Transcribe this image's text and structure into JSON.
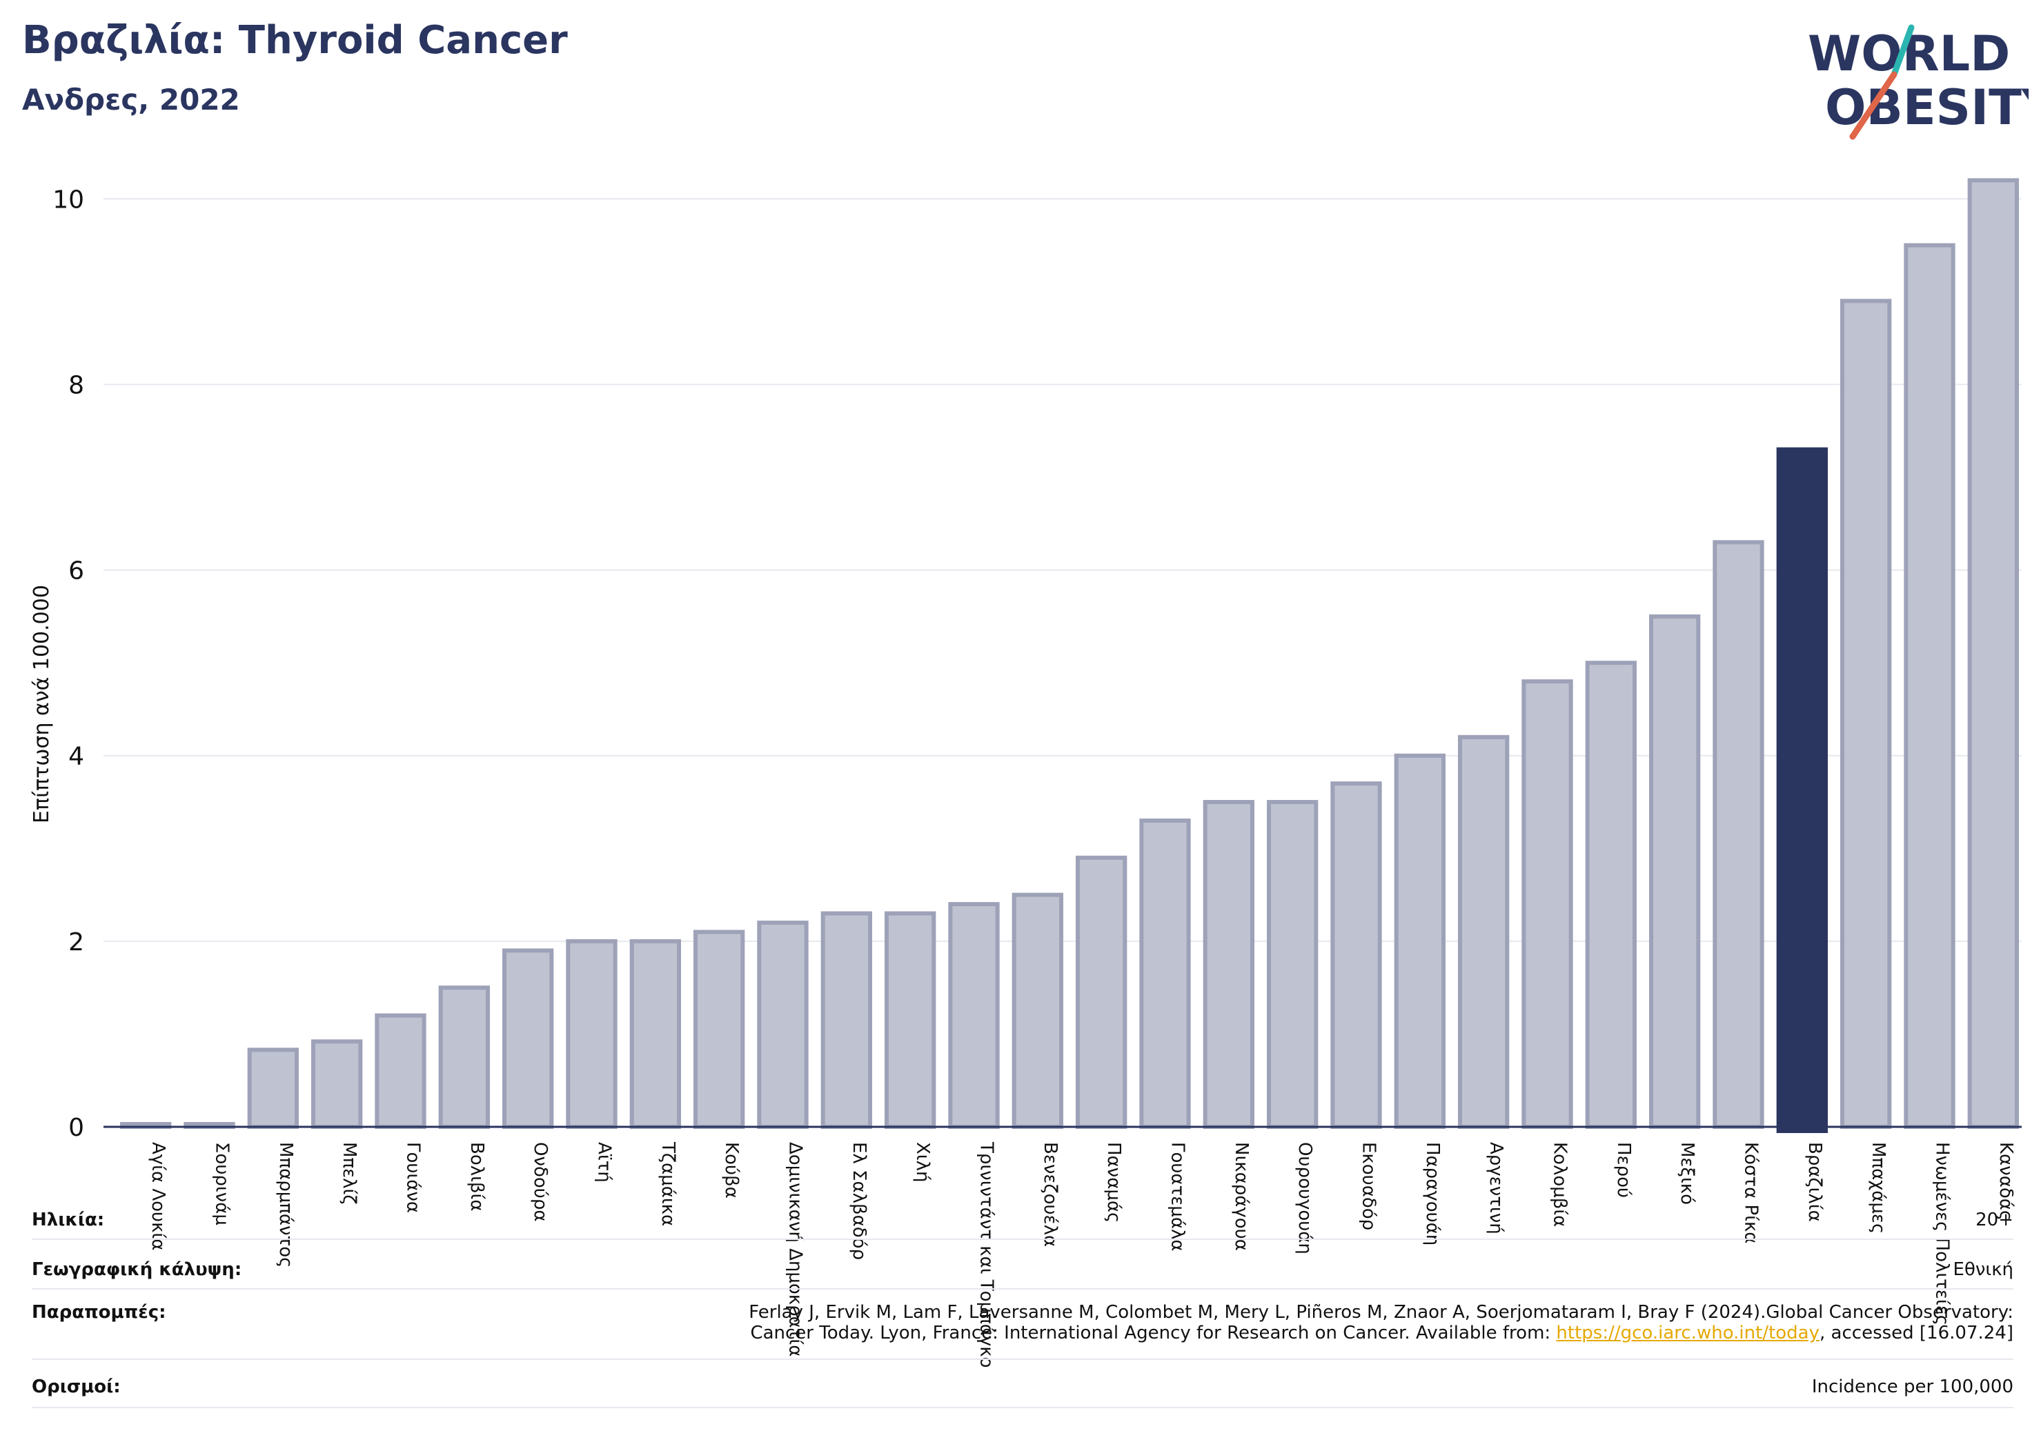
{
  "header": {
    "title": "Βραζιλία: Thyroid Cancer",
    "subtitle": "Ανδρες, 2022"
  },
  "logo": {
    "line1": "WORLD",
    "line2": "OBESITY",
    "slash_colors": [
      "#2bb5b0",
      "#e0664a"
    ],
    "text_color": "#2a3560"
  },
  "chart_data": {
    "type": "bar",
    "ylabel": "Επίπτωση ανά 100.000",
    "ylim": [
      0,
      10.3
    ],
    "yticks": [
      0,
      2,
      4,
      6,
      8,
      10
    ],
    "grid": true,
    "highlight": "Βραζιλία",
    "colors": {
      "bar": "#bfc2d0",
      "bar_edge": "#9ea2b8",
      "highlight": "#2a3560"
    },
    "categories": [
      "Αγία Λουκία",
      "Σουρινάμ",
      "Μπαρμπάντος",
      "Μπελίζ",
      "Γουιάνα",
      "Βολιβία",
      "Ονδούρα",
      "Αϊτή",
      "Τζαμάικα",
      "Κούβα",
      "Δομινικανή Δημοκρατία",
      "Ελ Σαλβαδόρ",
      "Χιλή",
      "Τρινιντάντ και Τομπάγκο",
      "Βενεζουέλα",
      "Παναμάς",
      "Γουατεμάλα",
      "Νικαράγουα",
      "Ουρουγουάη",
      "Εκουαδόρ",
      "Παραγουάη",
      "Αργεντινή",
      "Κολομβία",
      "Περού",
      "Μεξικό",
      "Κόστα Ρίκα",
      "Βραζιλία",
      "Μπαχάμες",
      "Ηνωμένες Πολιτείες",
      "Καναδάς"
    ],
    "values": [
      0.03,
      0.03,
      0.83,
      0.92,
      1.2,
      1.5,
      1.9,
      2.0,
      2.0,
      2.1,
      2.2,
      2.3,
      2.3,
      2.4,
      2.5,
      2.9,
      3.3,
      3.5,
      3.5,
      3.7,
      4.0,
      4.2,
      4.8,
      5.0,
      5.5,
      6.3,
      7.3,
      8.9,
      9.5,
      10.2
    ]
  },
  "meta": {
    "age_label": "Ηλικία:",
    "age_value": "20+",
    "coverage_label": "Γεωγραφική κάλυψη:",
    "coverage_value": "Εθνική",
    "references_label": "Παραπομπές:",
    "references_line1": "Ferlay J, Ervik M, Lam F, Laversanne M, Colombet M, Mery L, Piñeros M, Znaor A, Soerjomataram I, Bray F (2024).Global Cancer Observatory:",
    "references_line2_pre": "Cancer Today. Lyon, France: International Agency for Research on Cancer. Available from: ",
    "references_link": "https://gco.iarc.who.int/today",
    "references_line2_post": ", accessed [16.07.24]",
    "definitions_label": "Ορισμοί:",
    "definitions_value": "Incidence per 100,000"
  }
}
